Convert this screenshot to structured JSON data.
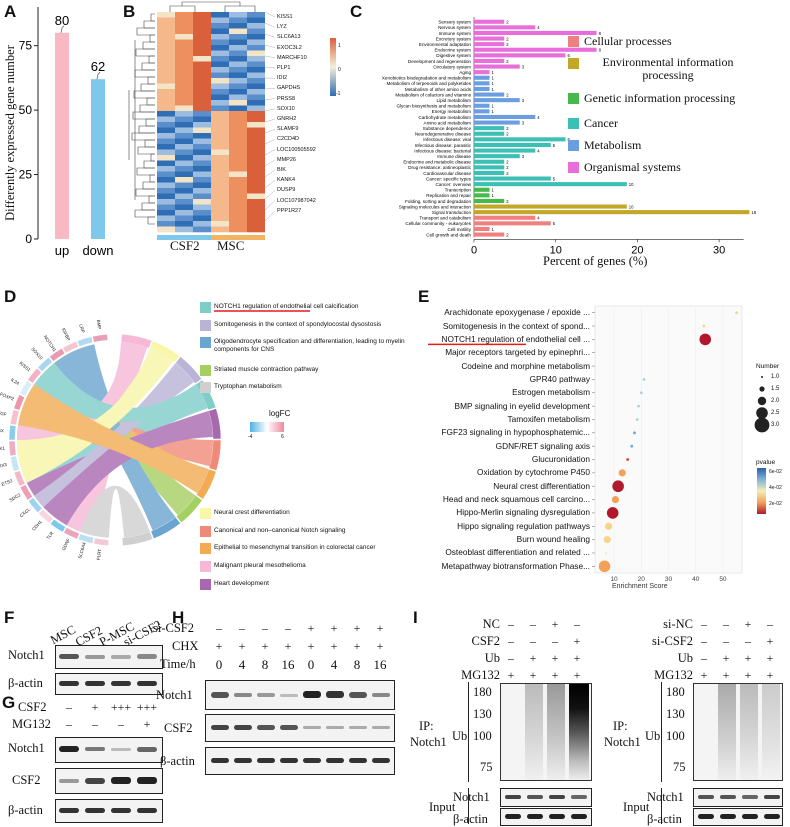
{
  "panel_labels": {
    "a": "A",
    "b": "B",
    "c": "C",
    "d": "D",
    "e": "E",
    "f": "F",
    "g": "G",
    "h": "H",
    "i": "I"
  },
  "panelA": {
    "ylabel": "Differently expressed gene number",
    "yticks": [
      "0",
      "25",
      "50",
      "75"
    ],
    "chart_data": {
      "type": "bar",
      "categories": [
        "up",
        "down"
      ],
      "values": [
        80,
        62
      ],
      "ylim": [
        0,
        90
      ],
      "colors": [
        "#f8b9c4",
        "#7ec8ec"
      ]
    }
  },
  "panelB": {
    "genes": [
      "KISS1",
      "LYZ",
      "SLC6A13",
      "EXOC3L2",
      "MARCHF10",
      "PLP1",
      "IDI2",
      "GAPDHS",
      "PRSS8",
      "SOX10",
      "GNRH2",
      "SLAMF9",
      "C2CD4D",
      "LOC100505592",
      "MMP26",
      "BIK",
      "KANK4",
      "DUSP9",
      "LOC107987042",
      "PPP1R27"
    ],
    "groups": [
      "CSF2",
      "MSC"
    ],
    "scale_ticks": [
      "1",
      "0",
      "-1"
    ],
    "group_colors": [
      "#7ec8ec",
      "#f0b463"
    ]
  },
  "panelC": {
    "xlabel": "Percent of genes (%)",
    "xticks": [
      "0",
      "10",
      "20",
      "30"
    ],
    "legend": [
      {
        "label": "Cellular processes",
        "color": "#ee8080"
      },
      {
        "label": "Environmental information processing",
        "color": "#c2a728"
      },
      {
        "label": "Genetic information processing",
        "color": "#48b84a"
      },
      {
        "label": "Cancer",
        "color": "#3cbfb5"
      },
      {
        "label": "Metabolism",
        "color": "#6a9ee0"
      },
      {
        "label": "Organismal systems",
        "color": "#e86fd9"
      }
    ],
    "chart_data": {
      "type": "bar",
      "orientation": "horizontal",
      "categories": [
        "Sensory system",
        "Nervous system",
        "Immune system",
        "Excretory system",
        "Environmental adaptation",
        "Endocrine system",
        "Digestive system",
        "Development and regeneration",
        "Circulatory system",
        "Aging",
        "Xenobiotics biodegradation and metabolism",
        "Metabolism of terpenoids and polyketides",
        "Metabolism of other amino acids",
        "Metabolism of cofactors and vitamins",
        "Lipid metabolism",
        "Glycan biosynthesis and metabolism",
        "Energy metabolism",
        "Carbohydrate metabolism",
        "Amino acid metabolism",
        "Substance dependence",
        "Neurodegenerative disease",
        "Infectious disease: viral",
        "Infectious disease: parasitic",
        "Infectious disease: bacterial",
        "Immune disease",
        "Endocrine and metabolic disease",
        "Drug resistance: antineoplastic",
        "Cardiovascular disease",
        "Cancer: specific types",
        "Cancer: overview",
        "Transcription",
        "Replication and repair",
        "Folding, sorting and degradation",
        "Signaling molecules and interaction",
        "Signal transduction",
        "Transport and catabolism",
        "Cellular community - eukaryotes",
        "Cell motility",
        "Cell growth and death"
      ],
      "counts": [
        "2",
        "4",
        "8",
        "2",
        "2",
        "8",
        "6",
        "2",
        "3",
        "1",
        "1",
        "1",
        "1",
        "2",
        "3",
        "1",
        "1",
        "4",
        "3",
        "2",
        "2",
        "6",
        "5",
        "4",
        "3",
        "2",
        "2",
        "2",
        "5",
        "10",
        "1",
        "1",
        "2",
        "10",
        "18",
        "4",
        "5",
        "1",
        "2"
      ],
      "values": [
        3.7,
        7.5,
        15,
        3.7,
        3.7,
        15,
        11.2,
        3.7,
        5.6,
        1.9,
        1.9,
        1.9,
        1.9,
        3.7,
        5.6,
        1.9,
        1.9,
        7.5,
        5.6,
        3.7,
        3.7,
        11.2,
        9.4,
        7.5,
        5.6,
        3.7,
        3.7,
        3.7,
        9.4,
        18.7,
        1.9,
        1.9,
        3.7,
        18.7,
        33.7,
        7.5,
        9.4,
        1.9,
        3.7
      ],
      "class_index": [
        5,
        5,
        5,
        5,
        5,
        5,
        5,
        5,
        5,
        5,
        4,
        4,
        4,
        4,
        4,
        4,
        4,
        4,
        4,
        3,
        3,
        3,
        3,
        3,
        3,
        3,
        3,
        3,
        3,
        3,
        2,
        2,
        2,
        1,
        1,
        0,
        0,
        0,
        0
      ],
      "xlim": [
        0,
        35
      ]
    }
  },
  "panelD": {
    "genes": [
      "FLRT",
      "SLC6A4",
      "GDNF",
      "TLR",
      "CDH1",
      "CXCL",
      "SDC2",
      "ETS2",
      "SIX3",
      "DKK1",
      "MSX",
      "FGF",
      "FOXP2",
      "IL24",
      "KISS1",
      "SOX10",
      "NOTCH1",
      "IGFBP",
      "LRP",
      "BMP"
    ],
    "legend_top": [
      {
        "label": "NOTCH1 regulation of endothelial cell calcification",
        "color": "#7ecdc7"
      },
      {
        "label": "Somitogenesis in the context of spondylocostal dysostosis",
        "color": "#b9b3d6"
      },
      {
        "label": "Oligodendrocyte specification and differentiation, leading to myelin components for CNS",
        "color": "#6aa5cf"
      },
      {
        "label": "Striated muscle contraction pathway",
        "color": "#a6cf62"
      },
      {
        "label": "Tryptophan metabolism",
        "color": "#cfcfcf"
      }
    ],
    "legend_bottom": [
      {
        "label": "Neural crest differentiation",
        "color": "#f8f6a7"
      },
      {
        "label": "Canonical and non–canonical Notch signaling",
        "color": "#f08a78"
      },
      {
        "label": "Epithelial to mesenchymal transition in colorectal cancer",
        "color": "#f2ab52"
      },
      {
        "label": "Malignant pleural mesothelioma",
        "color": "#f6b8d6"
      },
      {
        "label": "Heart development",
        "color": "#a868b0"
      }
    ],
    "logfc_label": "logFC",
    "logfc_ticks": [
      "-4",
      "6"
    ]
  },
  "panelE": {
    "xlabel": "Enrichment Score",
    "xticks": [
      "10",
      "20",
      "30",
      "40",
      "50"
    ],
    "size_legend_title": "Number",
    "size_ticks": [
      "1.0",
      "1.5",
      "2.0",
      "2.5",
      "3.0"
    ],
    "color_legend_title": "pvalue",
    "color_ticks": [
      "6e-02",
      "4e-02",
      "2e-02"
    ],
    "chart_data": {
      "type": "scatter",
      "terms": [
        "Arachidonate epoxygenase / epoxide ...",
        "Somitogenesis in the context of spond...",
        "NOTCH1 regulation of endothelial cell ...",
        "Major receptors targeted by epinephri...",
        "Codeine and morphine metabolism",
        "GPR40 pathway",
        "Estrogen metabolism",
        "BMP signaling in eyelid development",
        "Tamoxifen metabolism",
        "FGF23 signaling in hypophosphatemic...",
        "GDNF/RET signaling axis",
        "Glucuronidation",
        "Oxidation by cytochrome P450",
        "Neural crest differentiation",
        "Head and neck squamous cell carcino...",
        "Hippo-Merlin signaling dysregulation",
        "Hippo signaling regulation pathways",
        "Burn wound healing",
        "Osteoblast differentiation and related ...",
        "Metapathway biotransformation Phase..."
      ],
      "enrichment": [
        55,
        43,
        43.5,
        null,
        null,
        21,
        20,
        19,
        18.5,
        17.5,
        16.5,
        15,
        13,
        11.5,
        10.5,
        9.5,
        8,
        7.5,
        7,
        6.5
      ],
      "number": [
        1,
        1,
        3,
        null,
        null,
        1,
        1,
        1,
        1,
        1,
        1,
        1,
        2,
        3,
        2,
        3,
        2,
        2,
        1,
        3
      ],
      "pvalue": [
        0.04,
        0.04,
        0.015,
        null,
        null,
        0.055,
        0.055,
        0.055,
        0.055,
        0.06,
        0.06,
        0.025,
        0.03,
        0.012,
        0.03,
        0.012,
        0.045,
        0.045,
        0.05,
        0.03
      ],
      "xlim": [
        3,
        57
      ],
      "highlight_term": "NOTCH1 regulation"
    }
  },
  "panelF": {
    "lanes": [
      "MSC",
      "CSF2",
      "P-MSC",
      "si-CSF2"
    ],
    "rows": [
      "Notch1",
      "β-actin"
    ]
  },
  "panelG": {
    "csf2_label": "CSF2",
    "mg132_label": "MG132",
    "csf2_signs": [
      "–",
      "+",
      "+++",
      "+++"
    ],
    "mg132_signs": [
      "–",
      "–",
      "–",
      "+"
    ],
    "rows": [
      "Notch1",
      "CSF2",
      "β-actin"
    ]
  },
  "panelH": {
    "si_label": "si-CSF2",
    "chx_label": "CHX",
    "time_label": "Time/h",
    "si_signs": [
      "–",
      "–",
      "–",
      "–",
      "+",
      "+",
      "+",
      "+"
    ],
    "chx_signs": [
      "+",
      "+",
      "+",
      "+",
      "+",
      "+",
      "+",
      "+"
    ],
    "times": [
      "0",
      "4",
      "8",
      "16",
      "0",
      "4",
      "8",
      "16"
    ],
    "rows": [
      "Notch1",
      "CSF2",
      "β-actin"
    ]
  },
  "panelI": {
    "left": {
      "row_labels": [
        "NC",
        "CSF2",
        "Ub",
        "MG132"
      ],
      "signs": [
        [
          "–",
          "–",
          "+",
          "–"
        ],
        [
          "–",
          "–",
          "–",
          "+"
        ],
        [
          "–",
          "+",
          "+",
          "+"
        ],
        [
          "+",
          "+",
          "+",
          "+"
        ]
      ]
    },
    "right": {
      "row_labels": [
        "si-NC",
        "si-CSF2",
        "Ub",
        "MG132"
      ],
      "signs": [
        [
          "–",
          "–",
          "+",
          "–"
        ],
        [
          "–",
          "–",
          "–",
          "+"
        ],
        [
          "–",
          "+",
          "+",
          "+"
        ],
        [
          "+",
          "+",
          "+",
          "+"
        ]
      ]
    },
    "ip_label": "IP:",
    "ip_target": "Notch1",
    "ub_label": "Ub",
    "mw": [
      "180",
      "130",
      "100",
      "75"
    ],
    "input_label": "Input",
    "input_rows": [
      "Notch1",
      "β-actin"
    ]
  }
}
